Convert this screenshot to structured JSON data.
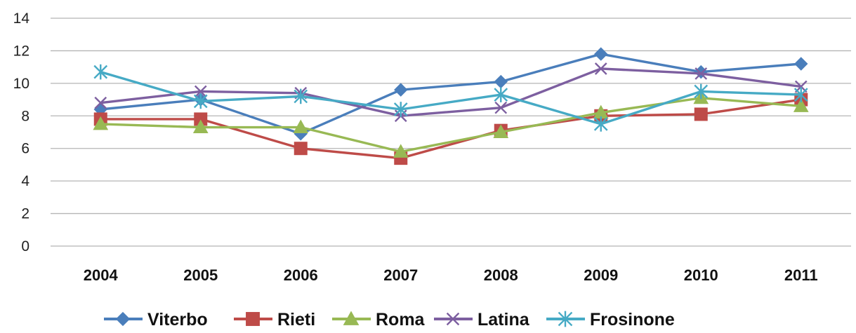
{
  "chart_data": {
    "type": "line",
    "title": "",
    "xlabel": "",
    "ylabel": "",
    "categories": [
      "2004",
      "2005",
      "2006",
      "2007",
      "2008",
      "2009",
      "2010",
      "2011"
    ],
    "ylim": [
      0,
      14
    ],
    "yticks": [
      0,
      2,
      4,
      6,
      8,
      10,
      12,
      14
    ],
    "grid": "horizontal",
    "legend_position": "bottom",
    "series": [
      {
        "name": "Viterbo",
        "marker": "diamond",
        "color": "#4a7ebb",
        "values": [
          8.4,
          9.0,
          6.9,
          9.6,
          10.1,
          11.8,
          10.7,
          11.2
        ]
      },
      {
        "name": "Rieti",
        "marker": "square",
        "color": "#be4b48",
        "values": [
          7.8,
          7.8,
          6.0,
          5.4,
          7.1,
          8.0,
          8.1,
          9.0
        ]
      },
      {
        "name": "Roma",
        "marker": "triangle",
        "color": "#98b954",
        "values": [
          7.5,
          7.3,
          7.3,
          5.8,
          7.0,
          8.2,
          9.1,
          8.6
        ]
      },
      {
        "name": "Latina",
        "marker": "x",
        "color": "#7d5fa0",
        "values": [
          8.8,
          9.5,
          9.4,
          8.0,
          8.5,
          10.9,
          10.6,
          9.8
        ]
      },
      {
        "name": "Frosinone",
        "marker": "star",
        "color": "#46aac5",
        "values": [
          10.7,
          8.9,
          9.2,
          8.4,
          9.3,
          7.5,
          9.5,
          9.3
        ]
      }
    ]
  }
}
